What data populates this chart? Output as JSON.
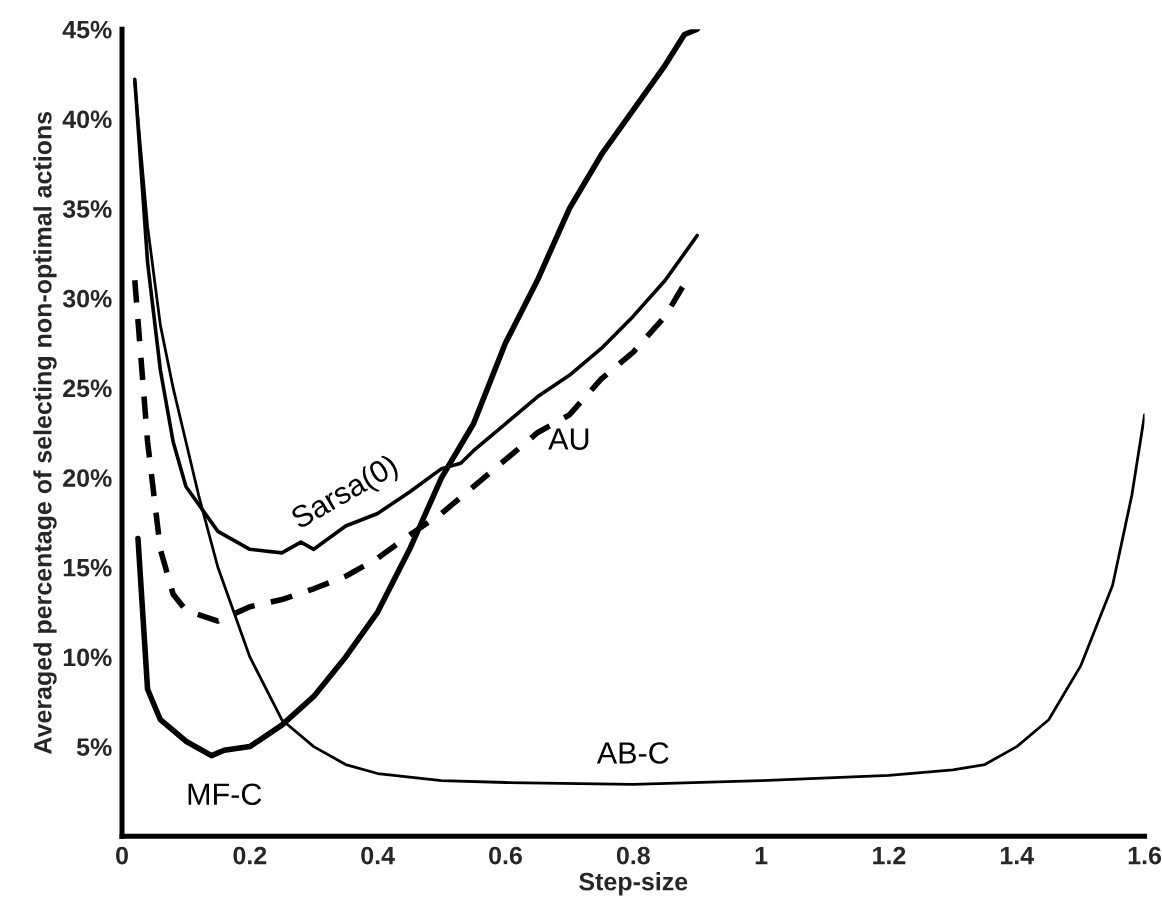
{
  "chart_data": {
    "type": "line",
    "xlabel": "Step-size",
    "ylabel": "Averaged percentage of selecting non-optimal actions",
    "xlim": [
      0,
      1.6
    ],
    "ylim": [
      0,
      45
    ],
    "xticks": [
      0,
      0.2,
      0.4,
      0.6,
      0.8,
      1,
      1.2,
      1.4,
      1.6
    ],
    "yticks": [
      {
        "value": 5,
        "label": "5%"
      },
      {
        "value": 10,
        "label": "10%"
      },
      {
        "value": 15,
        "label": "15%"
      },
      {
        "value": 20,
        "label": "20%"
      },
      {
        "value": 25,
        "label": "25%"
      },
      {
        "value": 30,
        "label": "30%"
      },
      {
        "value": 35,
        "label": "35%"
      },
      {
        "value": 40,
        "label": "40%"
      },
      {
        "value": 45,
        "label": "45%"
      }
    ],
    "grid": false,
    "legend": false,
    "marker": "none",
    "series": [
      {
        "name": "Sarsa(0)",
        "color": "#000000",
        "line_style": "solid",
        "x": [
          0.02,
          0.04,
          0.06,
          0.08,
          0.1,
          0.15,
          0.2,
          0.25,
          0.28,
          0.3,
          0.35,
          0.4,
          0.45,
          0.5,
          0.53,
          0.55,
          0.6,
          0.65,
          0.7,
          0.75,
          0.8,
          0.85,
          0.9
        ],
        "values": [
          42.2,
          32,
          26,
          22,
          19.5,
          17,
          16,
          15.8,
          16.4,
          16,
          17.3,
          18,
          19.2,
          20.5,
          20.8,
          21.5,
          23,
          24.5,
          25.7,
          27.2,
          29,
          31,
          33.5
        ]
      },
      {
        "name": "AU",
        "color": "#000000",
        "line_style": "dashed",
        "x": [
          0.02,
          0.04,
          0.06,
          0.08,
          0.1,
          0.15,
          0.2,
          0.25,
          0.3,
          0.35,
          0.4,
          0.45,
          0.5,
          0.55,
          0.6,
          0.65,
          0.7,
          0.75,
          0.8,
          0.85,
          0.88
        ],
        "values": [
          31,
          22,
          16,
          13.5,
          12.6,
          12,
          12.8,
          13.2,
          13.8,
          14.5,
          15.5,
          16.8,
          18,
          19.5,
          21,
          22.5,
          23.5,
          25.5,
          27,
          29,
          30.8
        ]
      },
      {
        "name": "MF-C",
        "color": "#000000",
        "line_style": "solid",
        "x": [
          0.025,
          0.04,
          0.06,
          0.1,
          0.14,
          0.16,
          0.2,
          0.25,
          0.3,
          0.35,
          0.4,
          0.45,
          0.5,
          0.55,
          0.6,
          0.65,
          0.7,
          0.75,
          0.8,
          0.85,
          0.88,
          0.9
        ],
        "values": [
          16.6,
          8.2,
          6.5,
          5.3,
          4.5,
          4.8,
          5,
          6.2,
          7.8,
          10,
          12.5,
          16,
          20,
          23,
          27.5,
          31,
          35,
          38,
          40.5,
          43,
          44.7,
          45
        ]
      },
      {
        "name": "AB-C",
        "color": "#000000",
        "line_style": "solid",
        "x": [
          0.02,
          0.04,
          0.06,
          0.08,
          0.1,
          0.12,
          0.15,
          0.2,
          0.25,
          0.3,
          0.35,
          0.4,
          0.5,
          0.6,
          0.8,
          1.0,
          1.2,
          1.3,
          1.35,
          1.4,
          1.45,
          1.5,
          1.55,
          1.58,
          1.6
        ],
        "values": [
          42,
          34,
          28.5,
          25,
          22,
          19,
          15,
          10,
          6.5,
          5,
          4,
          3.5,
          3.1,
          3,
          2.9,
          3.1,
          3.4,
          3.7,
          4,
          5,
          6.5,
          9.5,
          14,
          19,
          23.5
        ]
      }
    ]
  }
}
